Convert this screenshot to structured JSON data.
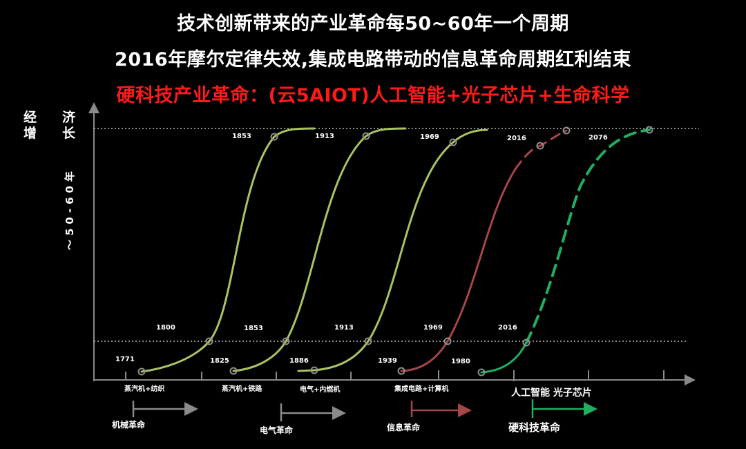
{
  "titles": {
    "line1": "技术创新带来的产业革命每50~60年一个周期",
    "line2": "2016年摩尔定律失效,集成电路带动的信息革命周期红利结束",
    "line3": "硬科技产业革命：(云5AIOT)人工智能+光子芯片+生命科学"
  },
  "colors": {
    "background": "#000000",
    "old_waves": "#a9c35e",
    "info_wave": "#a64646",
    "hardtech_wave": "#1fae5e",
    "axis": "#8a8a8a",
    "title_highlight": "#ff1a1a"
  },
  "y_axis": {
    "label_col1": [
      "经",
      "增"
    ],
    "label_col2": [
      "济",
      "长"
    ],
    "period": "～50-60年"
  },
  "waves": [
    {
      "start": "1771",
      "lower": "1800",
      "upper": "1853",
      "tech": "蒸汽机+纺织",
      "style": "solid"
    },
    {
      "start": "1825",
      "lower": "1853",
      "upper": "1913",
      "tech": "蒸汽机+铁路",
      "style": "solid"
    },
    {
      "start": "1886",
      "lower": "1913",
      "upper": "1969",
      "tech": "电气+内燃机",
      "style": "solid"
    },
    {
      "start": "1939",
      "lower": "1969",
      "upper": "2016",
      "tech": "集成电路+计算机",
      "style": "solid-then-dashed"
    },
    {
      "start": "1980",
      "lower": "2016",
      "upper": "2076",
      "tech": "人工智能 光子芯片",
      "style": "dashed"
    }
  ],
  "revolutions": [
    "机械革命",
    "电气革命",
    "信息革命",
    "硬科技革命"
  ]
}
